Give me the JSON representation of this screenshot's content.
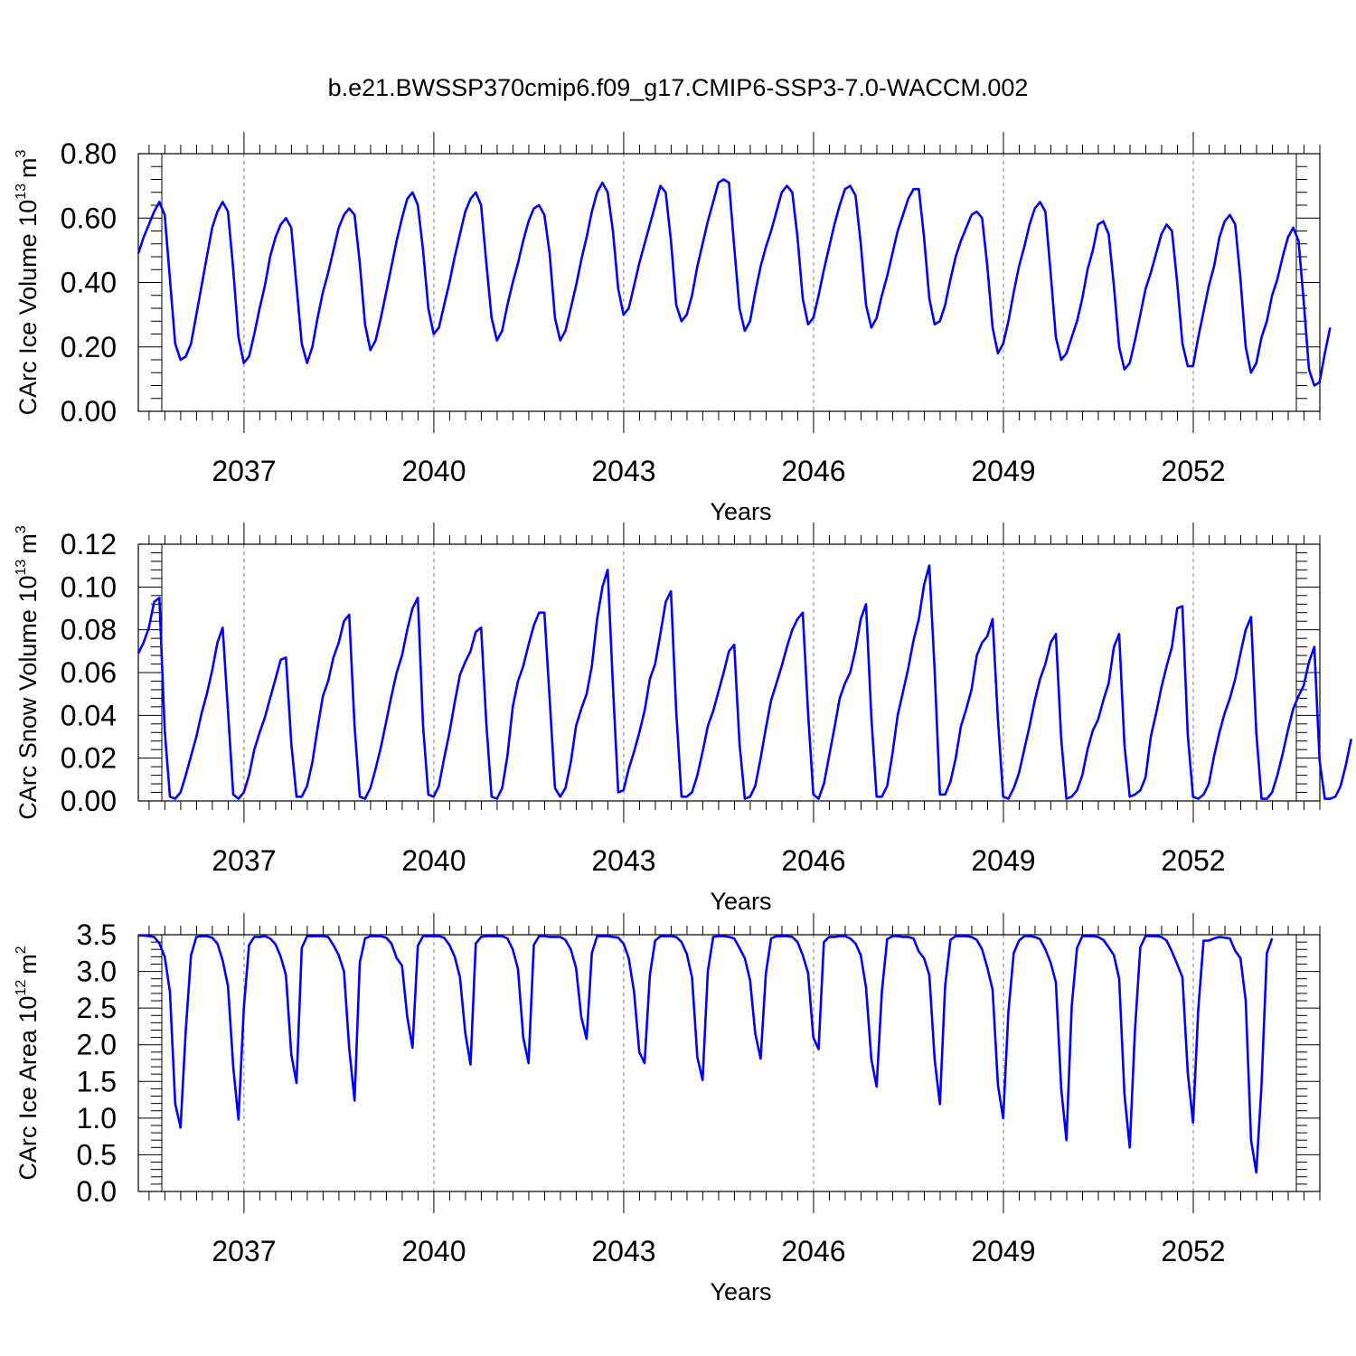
{
  "title": "b.e21.BWSSP370cmip6.f09_g17.CMIP6-SSP3-7.0-WACCM.002",
  "x_axis": {
    "label": "Years",
    "range": [
      2035.33,
      2054.0
    ],
    "ticks": [
      2037,
      2040,
      2043,
      2046,
      2049,
      2052
    ],
    "tick_labels": [
      "2037",
      "2040",
      "2043",
      "2046",
      "2049",
      "2052"
    ]
  },
  "colors": {
    "line": "#0000ff",
    "axis": "#000000",
    "grid": "#808080"
  },
  "chart_data": [
    {
      "type": "line",
      "ylabel": "CArc Ice Volume",
      "ylabel_unit": {
        "base": "10",
        "base_exp": "13",
        "unit": "m",
        "unit_exp": "3"
      },
      "ylim": [
        0,
        0.8
      ],
      "yticks": [
        0,
        0.2,
        0.4,
        0.6,
        0.8
      ],
      "ytick_labels": [
        "0.00",
        "0.20",
        "0.40",
        "0.60",
        "0.80"
      ],
      "x_start": 2035.33,
      "x_step": 0.08333,
      "series": [
        {
          "values": [
            0.49,
            0.54,
            0.58,
            0.62,
            0.65,
            0.61,
            0.41,
            0.21,
            0.16,
            0.17,
            0.21,
            0.3,
            0.39,
            0.48,
            0.57,
            0.62,
            0.65,
            0.62,
            0.44,
            0.23,
            0.15,
            0.17,
            0.24,
            0.32,
            0.39,
            0.48,
            0.54,
            0.58,
            0.6,
            0.57,
            0.39,
            0.21,
            0.15,
            0.2,
            0.29,
            0.37,
            0.43,
            0.5,
            0.57,
            0.61,
            0.63,
            0.61,
            0.46,
            0.27,
            0.19,
            0.22,
            0.29,
            0.37,
            0.45,
            0.53,
            0.6,
            0.66,
            0.68,
            0.64,
            0.5,
            0.32,
            0.24,
            0.26,
            0.33,
            0.4,
            0.48,
            0.55,
            0.62,
            0.66,
            0.68,
            0.64,
            0.46,
            0.29,
            0.22,
            0.25,
            0.33,
            0.4,
            0.46,
            0.53,
            0.59,
            0.63,
            0.64,
            0.61,
            0.49,
            0.29,
            0.22,
            0.25,
            0.32,
            0.39,
            0.47,
            0.54,
            0.62,
            0.68,
            0.71,
            0.68,
            0.56,
            0.38,
            0.3,
            0.32,
            0.39,
            0.46,
            0.52,
            0.58,
            0.64,
            0.7,
            0.68,
            0.53,
            0.33,
            0.28,
            0.3,
            0.36,
            0.45,
            0.52,
            0.59,
            0.65,
            0.71,
            0.72,
            0.71,
            0.51,
            0.32,
            0.25,
            0.28,
            0.37,
            0.45,
            0.51,
            0.56,
            0.62,
            0.68,
            0.7,
            0.68,
            0.54,
            0.35,
            0.27,
            0.29,
            0.36,
            0.44,
            0.51,
            0.58,
            0.64,
            0.69,
            0.7,
            0.67,
            0.52,
            0.33,
            0.26,
            0.29,
            0.36,
            0.42,
            0.49,
            0.56,
            0.61,
            0.66,
            0.69,
            0.69,
            0.54,
            0.35,
            0.27,
            0.28,
            0.33,
            0.41,
            0.48,
            0.53,
            0.57,
            0.61,
            0.62,
            0.6,
            0.45,
            0.26,
            0.18,
            0.21,
            0.28,
            0.37,
            0.45,
            0.51,
            0.58,
            0.63,
            0.65,
            0.62,
            0.43,
            0.23,
            0.16,
            0.18,
            0.23,
            0.28,
            0.35,
            0.44,
            0.5,
            0.58,
            0.59,
            0.55,
            0.39,
            0.2,
            0.13,
            0.15,
            0.22,
            0.3,
            0.38,
            0.43,
            0.49,
            0.55,
            0.58,
            0.56,
            0.4,
            0.21,
            0.14,
            0.14,
            0.23,
            0.31,
            0.39,
            0.45,
            0.54,
            0.59,
            0.61,
            0.58,
            0.41,
            0.2,
            0.12,
            0.15,
            0.23,
            0.28,
            0.36,
            0.41,
            0.48,
            0.54,
            0.57,
            0.53,
            0.34,
            0.13,
            0.08,
            0.09,
            0.18,
            0.26
          ]
        }
      ]
    },
    {
      "type": "line",
      "ylabel": "CArc Snow Volume",
      "ylabel_unit": {
        "base": "10",
        "base_exp": "13",
        "unit": "m",
        "unit_exp": "3"
      },
      "ylim": [
        0,
        0.12
      ],
      "yticks": [
        0,
        0.02,
        0.04,
        0.06,
        0.08,
        0.1,
        0.12
      ],
      "ytick_labels": [
        "0.00",
        "0.02",
        "0.04",
        "0.06",
        "0.08",
        "0.10",
        "0.12"
      ],
      "x_start": 2035.33,
      "x_step": 0.08333,
      "series": [
        {
          "values": [
            0.069,
            0.074,
            0.081,
            0.093,
            0.095,
            0.033,
            0.002,
            0.001,
            0.004,
            0.012,
            0.021,
            0.03,
            0.041,
            0.05,
            0.061,
            0.074,
            0.081,
            0.042,
            0.003,
            0.001,
            0.004,
            0.012,
            0.024,
            0.032,
            0.039,
            0.048,
            0.057,
            0.066,
            0.067,
            0.027,
            0.002,
            0.002,
            0.007,
            0.018,
            0.034,
            0.049,
            0.056,
            0.067,
            0.074,
            0.084,
            0.087,
            0.035,
            0.002,
            0.001,
            0.006,
            0.015,
            0.025,
            0.037,
            0.049,
            0.06,
            0.068,
            0.08,
            0.09,
            0.095,
            0.035,
            0.003,
            0.002,
            0.007,
            0.02,
            0.032,
            0.046,
            0.059,
            0.065,
            0.07,
            0.079,
            0.081,
            0.036,
            0.002,
            0.001,
            0.006,
            0.021,
            0.044,
            0.056,
            0.063,
            0.073,
            0.082,
            0.088,
            0.088,
            0.048,
            0.006,
            0.002,
            0.006,
            0.018,
            0.035,
            0.043,
            0.05,
            0.063,
            0.085,
            0.1,
            0.108,
            0.054,
            0.004,
            0.005,
            0.015,
            0.023,
            0.032,
            0.042,
            0.057,
            0.064,
            0.078,
            0.093,
            0.098,
            0.042,
            0.002,
            0.002,
            0.004,
            0.012,
            0.023,
            0.035,
            0.042,
            0.051,
            0.06,
            0.07,
            0.073,
            0.027,
            0.001,
            0.002,
            0.007,
            0.02,
            0.034,
            0.047,
            0.055,
            0.063,
            0.072,
            0.08,
            0.085,
            0.088,
            0.041,
            0.003,
            0.001,
            0.008,
            0.021,
            0.034,
            0.048,
            0.055,
            0.06,
            0.071,
            0.085,
            0.092,
            0.039,
            0.002,
            0.002,
            0.007,
            0.022,
            0.04,
            0.051,
            0.062,
            0.075,
            0.085,
            0.101,
            0.11,
            0.061,
            0.003,
            0.003,
            0.009,
            0.02,
            0.035,
            0.043,
            0.052,
            0.068,
            0.074,
            0.077,
            0.085,
            0.038,
            0.002,
            0.001,
            0.006,
            0.013,
            0.024,
            0.035,
            0.047,
            0.057,
            0.064,
            0.074,
            0.078,
            0.029,
            0.001,
            0.002,
            0.005,
            0.012,
            0.024,
            0.033,
            0.038,
            0.047,
            0.055,
            0.072,
            0.078,
            0.026,
            0.002,
            0.003,
            0.005,
            0.011,
            0.03,
            0.041,
            0.053,
            0.063,
            0.072,
            0.09,
            0.091,
            0.031,
            0.002,
            0.001,
            0.003,
            0.008,
            0.021,
            0.032,
            0.041,
            0.048,
            0.057,
            0.069,
            0.08,
            0.086,
            0.032,
            0.001,
            0.001,
            0.004,
            0.012,
            0.022,
            0.033,
            0.043,
            0.049,
            0.054,
            0.065,
            0.072,
            0.019,
            0.001,
            0.001,
            0.002,
            0.007,
            0.017,
            0.029
          ]
        }
      ]
    },
    {
      "type": "line",
      "ylabel": "CArc Ice Area",
      "ylabel_unit": {
        "base": "10",
        "base_exp": "12",
        "unit": "m",
        "unit_exp": "2"
      },
      "ylim": [
        0,
        3.5
      ],
      "yticks": [
        0,
        0.5,
        1.0,
        1.5,
        2.0,
        2.5,
        3.0,
        3.5
      ],
      "ytick_labels": [
        "0.0",
        "0.5",
        "1.0",
        "1.5",
        "2.0",
        "2.5",
        "3.0",
        "3.5"
      ],
      "x_start": 2035.33,
      "x_step": 0.08333,
      "series": [
        {
          "values": [
            3.49,
            3.49,
            3.48,
            3.47,
            3.38,
            3.2,
            2.72,
            1.2,
            0.87,
            2.2,
            3.22,
            3.47,
            3.48,
            3.48,
            3.46,
            3.38,
            3.15,
            2.8,
            1.7,
            0.98,
            2.5,
            3.36,
            3.47,
            3.47,
            3.48,
            3.45,
            3.37,
            3.2,
            2.95,
            1.87,
            1.48,
            3.32,
            3.48,
            3.48,
            3.48,
            3.48,
            3.47,
            3.36,
            3.22,
            3.0,
            1.95,
            1.24,
            3.12,
            3.45,
            3.48,
            3.48,
            3.48,
            3.46,
            3.38,
            3.18,
            3.08,
            2.38,
            1.96,
            3.35,
            3.48,
            3.48,
            3.48,
            3.48,
            3.46,
            3.36,
            3.2,
            2.92,
            2.16,
            1.73,
            3.38,
            3.47,
            3.48,
            3.48,
            3.48,
            3.48,
            3.45,
            3.3,
            3.03,
            2.1,
            1.75,
            3.36,
            3.48,
            3.48,
            3.47,
            3.47,
            3.47,
            3.43,
            3.3,
            3.05,
            2.38,
            2.08,
            3.25,
            3.48,
            3.48,
            3.48,
            3.47,
            3.46,
            3.38,
            3.18,
            2.72,
            1.9,
            1.75,
            2.95,
            3.42,
            3.48,
            3.48,
            3.48,
            3.47,
            3.4,
            3.24,
            2.92,
            1.83,
            1.52,
            3.0,
            3.47,
            3.48,
            3.48,
            3.47,
            3.45,
            3.32,
            3.18,
            2.88,
            2.15,
            1.81,
            2.97,
            3.45,
            3.48,
            3.48,
            3.48,
            3.47,
            3.4,
            3.22,
            2.98,
            2.1,
            1.94,
            3.4,
            3.47,
            3.47,
            3.48,
            3.48,
            3.45,
            3.38,
            3.22,
            2.78,
            1.8,
            1.43,
            2.72,
            3.44,
            3.48,
            3.48,
            3.47,
            3.47,
            3.45,
            3.27,
            3.18,
            2.95,
            1.8,
            1.19,
            2.8,
            3.43,
            3.48,
            3.48,
            3.48,
            3.47,
            3.43,
            3.3,
            3.05,
            2.75,
            1.45,
            1.0,
            2.45,
            3.25,
            3.42,
            3.48,
            3.48,
            3.47,
            3.44,
            3.3,
            3.12,
            2.85,
            1.4,
            0.7,
            2.52,
            3.32,
            3.48,
            3.48,
            3.48,
            3.47,
            3.43,
            3.33,
            3.22,
            2.9,
            1.32,
            0.6,
            2.2,
            3.33,
            3.48,
            3.48,
            3.48,
            3.47,
            3.42,
            3.27,
            3.1,
            2.92,
            1.62,
            0.94,
            2.48,
            3.42,
            3.42,
            3.45,
            3.47,
            3.46,
            3.45,
            3.28,
            3.18,
            2.6,
            0.7,
            0.26,
            1.45,
            3.25,
            3.45
          ]
        }
      ]
    }
  ]
}
